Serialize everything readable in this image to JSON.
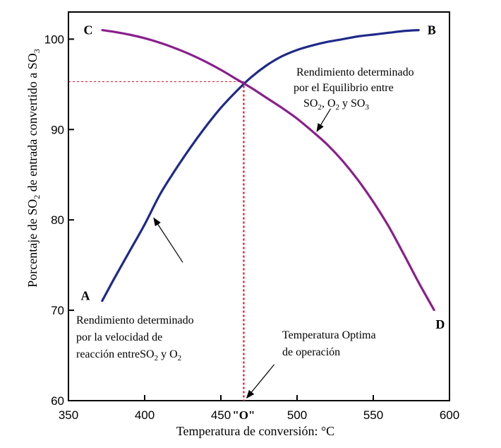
{
  "chart_data": {
    "type": "line",
    "title": "",
    "xlabel": "Temperatura de conversión: °C",
    "ylabel_parts": [
      "Porcentaje de SO",
      "2",
      " de entrada convertido a SO",
      "3"
    ],
    "xlim": [
      350,
      600
    ],
    "ylim": [
      60,
      103
    ],
    "x_ticks": [
      350,
      400,
      450,
      500,
      550,
      600
    ],
    "y_ticks": [
      60,
      70,
      80,
      90,
      100
    ],
    "x_tick_labels": [
      "350",
      "400",
      "450",
      "500",
      "550",
      "600"
    ],
    "y_tick_labels": [
      "60",
      "70",
      "80",
      "90",
      "100"
    ],
    "grid": false,
    "series": [
      {
        "name": "Rendimiento determinado por la velocidad de reacción entre SO2 y O2",
        "color": "#1f2a8a",
        "start_label": "A",
        "end_label": "B",
        "x": [
          372,
          380,
          390,
          400,
          410,
          420,
          430,
          440,
          450,
          460,
          470,
          480,
          490,
          500,
          510,
          520,
          530,
          540,
          550,
          560,
          570,
          580
        ],
        "y": [
          71.0,
          73.5,
          76.5,
          79.5,
          82.8,
          85.5,
          88.0,
          90.3,
          92.4,
          94.2,
          95.8,
          97.1,
          98.1,
          98.8,
          99.3,
          99.7,
          100.0,
          100.3,
          100.5,
          100.7,
          100.9,
          101.0
        ]
      },
      {
        "name": "Rendimiento determinado por el Equilibrio entre SO2, O2 y SO3",
        "color": "#8a1f8c",
        "start_label": "C",
        "end_label": "D",
        "x": [
          372,
          380,
          390,
          400,
          410,
          420,
          430,
          440,
          450,
          460,
          470,
          480,
          490,
          500,
          510,
          520,
          530,
          540,
          550,
          560,
          570,
          580,
          590
        ],
        "y": [
          101.0,
          100.8,
          100.5,
          100.1,
          99.6,
          99.0,
          98.3,
          97.5,
          96.6,
          95.6,
          94.6,
          93.5,
          92.4,
          91.2,
          89.8,
          88.3,
          86.5,
          84.4,
          82.0,
          79.3,
          76.2,
          73.0,
          70.0
        ]
      }
    ],
    "intersection": {
      "x": 465,
      "y": 95.3,
      "axis_label": "\"O\""
    },
    "annotations": {
      "equilibrium": {
        "lines": [
          {
            "parts": [
              "Rendimiento determinado"
            ]
          },
          {
            "parts": [
              "por el  Equilibrio entre"
            ]
          },
          {
            "parts": [
              "SO",
              "2",
              ", O",
              "2",
              " y SO",
              "3"
            ]
          }
        ],
        "arrow_from": [
          522,
          92.3
        ],
        "arrow_to": [
          513,
          89.8
        ]
      },
      "velocity": {
        "lines": [
          {
            "parts": [
              "Rendimiento determinado"
            ]
          },
          {
            "parts": [
              "por la velocidad de"
            ]
          },
          {
            "parts": [
              "reacción entreSO",
              "2",
              "  y O",
              "2"
            ]
          }
        ],
        "arrow_from": [
          425,
          75.3
        ],
        "arrow_to": [
          406,
          80.2
        ]
      },
      "optimum": {
        "lines": [
          {
            "parts": [
              "Temperatura Optima"
            ]
          },
          {
            "parts": [
              "de operación"
            ]
          }
        ],
        "arrow_from": [
          485,
          64.0
        ],
        "arrow_to": [
          467,
          60.3
        ]
      }
    }
  }
}
